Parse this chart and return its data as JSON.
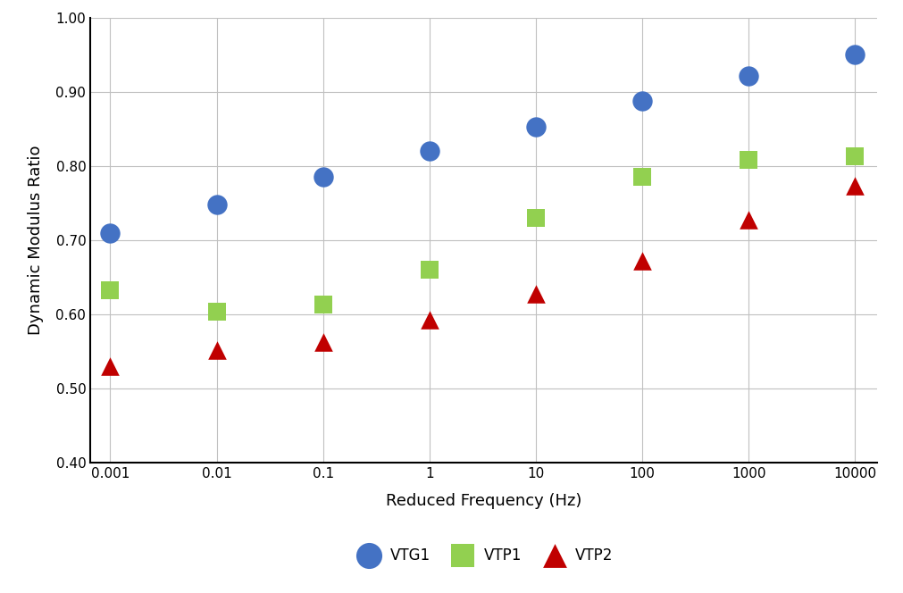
{
  "frequencies": [
    0.001,
    0.01,
    0.1,
    1,
    10,
    100,
    1000,
    10000
  ],
  "VTG1": [
    0.71,
    0.748,
    0.785,
    0.82,
    0.853,
    0.888,
    0.921,
    0.95
  ],
  "VTP1": [
    0.632,
    0.603,
    0.613,
    0.66,
    0.73,
    0.785,
    0.808,
    0.813
  ],
  "VTP2": [
    0.53,
    0.552,
    0.563,
    0.593,
    0.628,
    0.672,
    0.728,
    0.773
  ],
  "VTG1_color": "#4472C4",
  "VTP1_color": "#92D050",
  "VTP2_color": "#C00000",
  "xlabel": "Reduced Frequency (Hz)",
  "ylabel": "Dynamic Modulus Ratio",
  "ylim": [
    0.4,
    1.0
  ],
  "background_color": "#FFFFFF",
  "grid_color": "#C0C0C0",
  "legend_labels": [
    "VTG1",
    "VTP1",
    "VTP2"
  ]
}
